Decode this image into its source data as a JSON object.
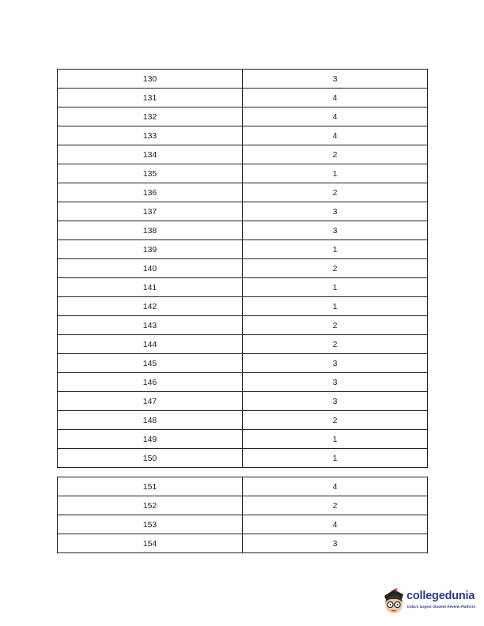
{
  "tables": [
    {
      "rows": [
        [
          "130",
          "3"
        ],
        [
          "131",
          "4"
        ],
        [
          "132",
          "4"
        ],
        [
          "133",
          "4"
        ],
        [
          "134",
          "2"
        ],
        [
          "135",
          "1"
        ],
        [
          "136",
          "2"
        ],
        [
          "137",
          "3"
        ],
        [
          "138",
          "3"
        ],
        [
          "139",
          "1"
        ],
        [
          "140",
          "2"
        ],
        [
          "141",
          "1"
        ],
        [
          "142",
          "1"
        ],
        [
          "143",
          "2"
        ],
        [
          "144",
          "2"
        ],
        [
          "145",
          "3"
        ],
        [
          "146",
          "3"
        ],
        [
          "147",
          "3"
        ],
        [
          "148",
          "2"
        ],
        [
          "149",
          "1"
        ],
        [
          "150",
          "1"
        ]
      ]
    },
    {
      "rows": [
        [
          "151",
          "4"
        ],
        [
          "152",
          "2"
        ],
        [
          "153",
          "4"
        ],
        [
          "154",
          "3"
        ]
      ]
    }
  ],
  "logo": {
    "name": "collegedunia",
    "tagline": "India's largest Student Review Platform",
    "brand_color": "#2b3a8c"
  }
}
